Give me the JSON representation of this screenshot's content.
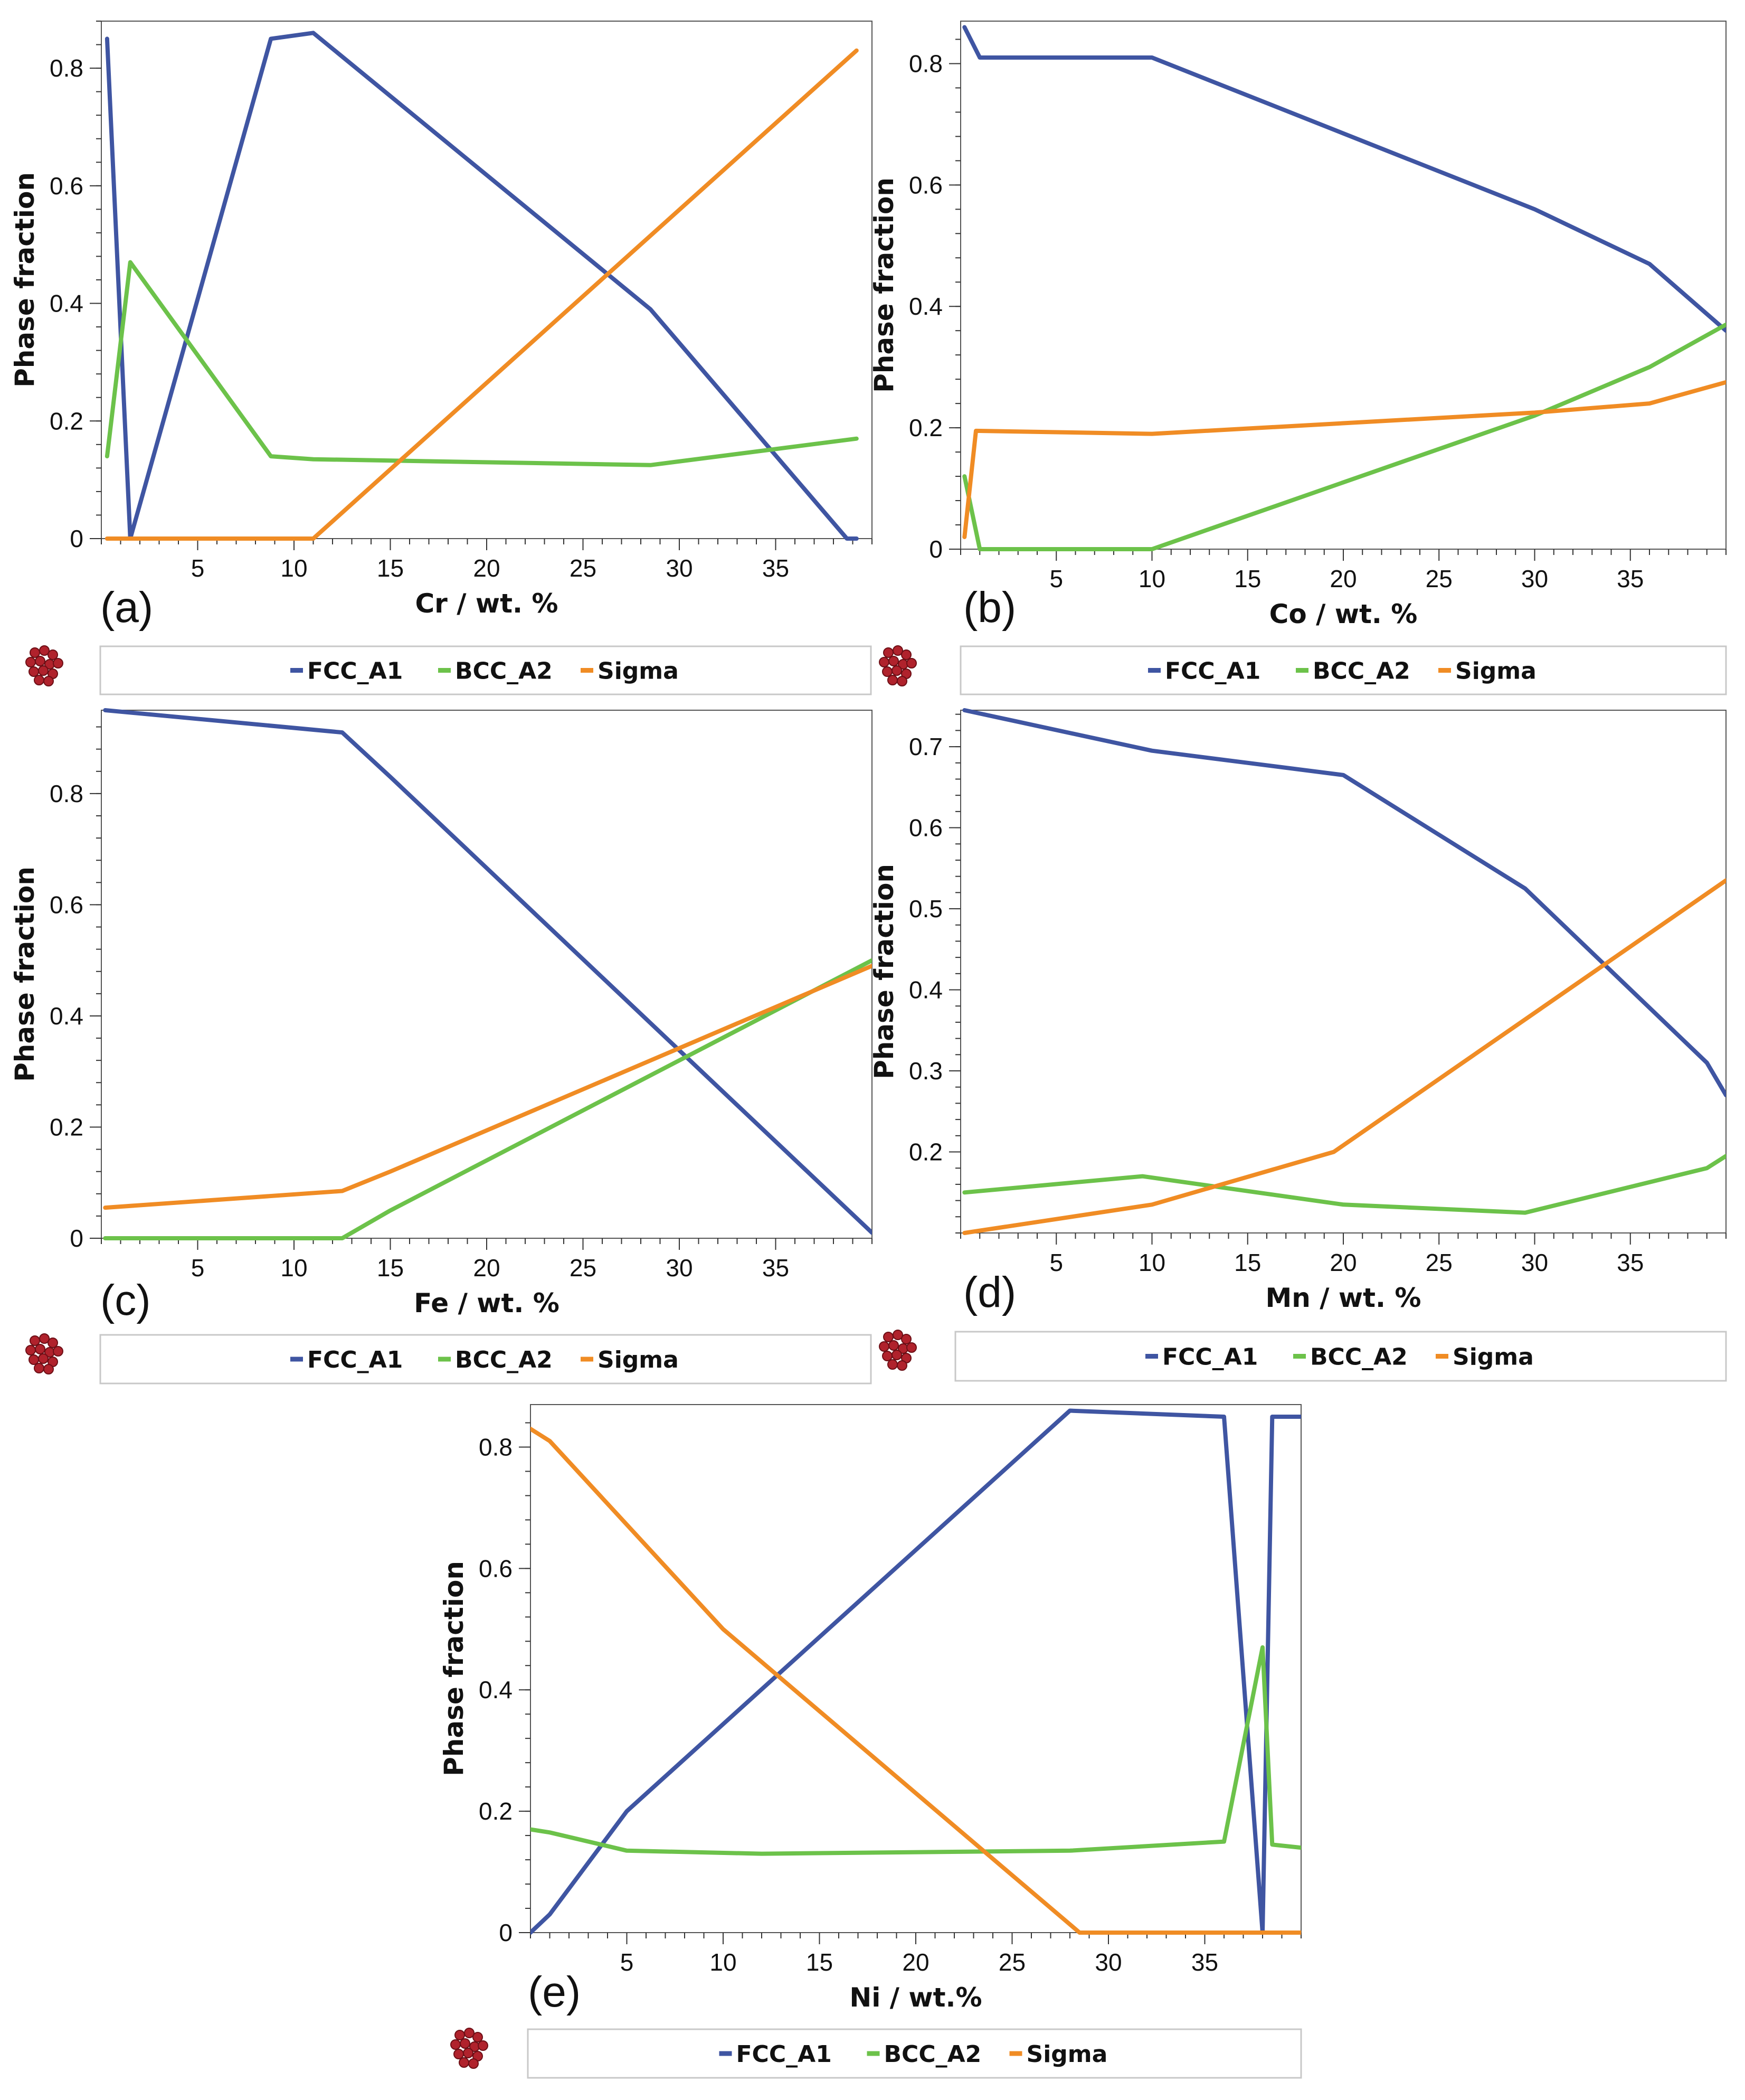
{
  "figure": {
    "y_label": "Phase fraction",
    "legend": [
      {
        "name": "FCC_A1",
        "color": "#3f55a2"
      },
      {
        "name": "BCC_A2",
        "color": "#6cc24a"
      },
      {
        "name": "Sigma",
        "color": "#f08c24"
      }
    ],
    "legend_icon": "red-dots-cluster-icon"
  },
  "chart_data": [
    {
      "panel": "(a)",
      "type": "line",
      "xlabel": "Cr / wt. %",
      "ylabel": "Phase fraction",
      "xlim": [
        0,
        40
      ],
      "ylim": [
        0,
        0.88
      ],
      "xticks": [
        5,
        10,
        15,
        20,
        25,
        30,
        35
      ],
      "yticks": [
        0,
        0.2,
        0.4,
        0.6,
        0.8
      ],
      "series": [
        {
          "name": "FCC_A1",
          "x": [
            0.3,
            1.5,
            8.8,
            11.0,
            28.5,
            38.7,
            39.2
          ],
          "y": [
            0.85,
            0.0,
            0.85,
            0.86,
            0.39,
            0.0,
            0.0
          ]
        },
        {
          "name": "BCC_A2",
          "x": [
            0.3,
            1.5,
            8.8,
            11.0,
            28.5,
            39.2
          ],
          "y": [
            0.14,
            0.47,
            0.14,
            0.135,
            0.125,
            0.17
          ]
        },
        {
          "name": "Sigma",
          "x": [
            0.3,
            11.0,
            39.2
          ],
          "y": [
            0.0,
            0.0,
            0.83
          ]
        }
      ]
    },
    {
      "panel": "(b)",
      "type": "line",
      "xlabel": "Co / wt. %",
      "ylabel": "Phase fraction",
      "xlim": [
        0,
        40
      ],
      "ylim": [
        0,
        0.87
      ],
      "xticks": [
        5,
        10,
        15,
        20,
        25,
        30,
        35
      ],
      "yticks": [
        0,
        0.2,
        0.4,
        0.6,
        0.8
      ],
      "series": [
        {
          "name": "FCC_A1",
          "x": [
            0.2,
            1.0,
            10.0,
            30.0,
            36.0,
            40.0
          ],
          "y": [
            0.86,
            0.81,
            0.81,
            0.56,
            0.47,
            0.36
          ]
        },
        {
          "name": "BCC_A2",
          "x": [
            0.2,
            1.0,
            10.0,
            30.0,
            36.0,
            40.0
          ],
          "y": [
            0.12,
            0.0,
            0.0,
            0.22,
            0.3,
            0.37
          ]
        },
        {
          "name": "Sigma",
          "x": [
            0.2,
            0.8,
            10.0,
            30.0,
            36.0,
            40.0
          ],
          "y": [
            0.02,
            0.195,
            0.19,
            0.225,
            0.24,
            0.275
          ]
        }
      ]
    },
    {
      "panel": "(c)",
      "type": "line",
      "xlabel": "Fe / wt. %",
      "ylabel": "Phase fraction",
      "xlim": [
        0,
        40
      ],
      "ylim": [
        0,
        0.95
      ],
      "xticks": [
        5,
        10,
        15,
        20,
        25,
        30,
        35
      ],
      "yticks": [
        0,
        0.2,
        0.4,
        0.6,
        0.8
      ],
      "series": [
        {
          "name": "FCC_A1",
          "x": [
            0.2,
            12.5,
            15.0,
            40.0
          ],
          "y": [
            0.95,
            0.91,
            0.83,
            0.01
          ]
        },
        {
          "name": "BCC_A2",
          "x": [
            0.2,
            12.5,
            15.0,
            40.0
          ],
          "y": [
            0.0,
            0.0,
            0.05,
            0.5
          ]
        },
        {
          "name": "Sigma",
          "x": [
            0.2,
            12.5,
            15.0,
            40.0
          ],
          "y": [
            0.055,
            0.085,
            0.12,
            0.49
          ]
        }
      ]
    },
    {
      "panel": "(d)",
      "type": "line",
      "xlabel": "Mn / wt. %",
      "ylabel": "Phase fraction",
      "xlim": [
        0,
        40
      ],
      "ylim": [
        0.1,
        0.745
      ],
      "xticks": [
        5,
        10,
        15,
        20,
        25,
        30,
        35
      ],
      "yticks": [
        0.2,
        0.3,
        0.4,
        0.5,
        0.6,
        0.7
      ],
      "series": [
        {
          "name": "FCC_A1",
          "x": [
            0.2,
            10.0,
            20.0,
            29.5,
            39.0,
            40.0
          ],
          "y": [
            0.745,
            0.695,
            0.665,
            0.525,
            0.31,
            0.27
          ]
        },
        {
          "name": "BCC_A2",
          "x": [
            0.2,
            9.5,
            20.0,
            29.5,
            39.0,
            40.0
          ],
          "y": [
            0.15,
            0.17,
            0.135,
            0.125,
            0.18,
            0.195
          ]
        },
        {
          "name": "Sigma",
          "x": [
            0.2,
            10.0,
            19.5,
            40.0
          ],
          "y": [
            0.1,
            0.135,
            0.2,
            0.535
          ]
        }
      ]
    },
    {
      "panel": "(e)",
      "type": "line",
      "xlabel": "Ni / wt.%",
      "ylabel": "Phase fraction",
      "xlim": [
        0,
        40
      ],
      "ylim": [
        0,
        0.87
      ],
      "xticks": [
        5,
        10,
        15,
        20,
        25,
        30,
        35
      ],
      "yticks": [
        0,
        0.2,
        0.4,
        0.6,
        0.8
      ],
      "series": [
        {
          "name": "FCC_A1",
          "x": [
            0.0,
            1.0,
            5.0,
            28.0,
            36.0,
            38.0,
            38.5,
            40.0
          ],
          "y": [
            0.0,
            0.03,
            0.2,
            0.86,
            0.85,
            0.0,
            0.85,
            0.85
          ]
        },
        {
          "name": "BCC_A2",
          "x": [
            0.0,
            1.0,
            5.0,
            12.0,
            28.0,
            36.0,
            38.0,
            38.5,
            40.0
          ],
          "y": [
            0.17,
            0.165,
            0.135,
            0.13,
            0.135,
            0.15,
            0.47,
            0.145,
            0.14
          ]
        },
        {
          "name": "Sigma",
          "x": [
            0.0,
            1.0,
            10.0,
            28.5,
            40.0
          ],
          "y": [
            0.83,
            0.81,
            0.5,
            0.0,
            0.0
          ]
        }
      ]
    }
  ]
}
